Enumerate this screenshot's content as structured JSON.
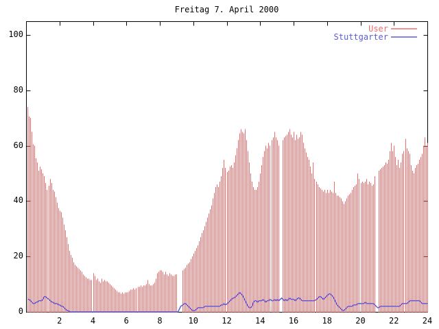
{
  "title": "Freitag 7. April 2000",
  "colors": {
    "background": "#ffffff",
    "axis": "#000000",
    "text": "#000000",
    "user_red": "#f26b6b",
    "stuttgarter_blue": "#5c5cd6"
  },
  "legend": {
    "position": "top-right",
    "entries": [
      {
        "label": "User",
        "color": "#f26b6b"
      },
      {
        "label": "Stuttgarter",
        "color": "#5c5cd6"
      }
    ]
  },
  "chart_data": {
    "type": "bar",
    "subtype": "impulses-plus-line",
    "title": "Freitag 7. April 2000",
    "xlabel": "",
    "ylabel": "",
    "xlim": [
      0,
      24
    ],
    "ylim": [
      0,
      105
    ],
    "grid": false,
    "legend_position": "top-right",
    "x_tick_labels": [
      "2",
      "4",
      "6",
      "8",
      "10",
      "12",
      "14",
      "16",
      "18",
      "20",
      "22",
      "24"
    ],
    "x_tick_hours": [
      2,
      4,
      6,
      8,
      10,
      12,
      14,
      16,
      18,
      20,
      22,
      24
    ],
    "y_tick_labels": [
      "0",
      "20",
      "40",
      "60",
      "80",
      "100"
    ],
    "y_tick_values": [
      0,
      20,
      40,
      60,
      80,
      100
    ],
    "sample_interval_minutes": 5,
    "first_sample_minute": 5,
    "series": [
      {
        "name": "User",
        "style": "impulses",
        "color": "#f26b6b",
        "values": [
          74,
          70.5,
          70,
          65,
          60.5,
          60,
          55.5,
          54,
          51,
          52.5,
          51.5,
          50,
          49,
          46.5,
          44,
          45.5,
          48,
          46.5,
          44,
          43.5,
          41.5,
          39.5,
          37.5,
          36.5,
          36,
          34,
          31.5,
          29.5,
          27,
          24.5,
          22,
          20.5,
          19.5,
          18,
          17,
          16.5,
          16,
          15.5,
          15,
          14.5,
          13.5,
          13,
          12.5,
          12,
          12,
          11.5,
          11.5,
          14,
          13,
          11.5,
          12,
          11,
          10.5,
          12,
          11,
          11.5,
          11,
          11,
          10.5,
          10,
          9.5,
          9,
          8.5,
          8,
          7.5,
          7,
          7,
          6.5,
          7,
          6.5,
          7,
          7,
          7,
          7.5,
          8,
          8,
          8.5,
          8,
          8.5,
          9,
          9,
          9.5,
          9,
          9.5,
          9.5,
          10,
          11.5,
          10,
          9.5,
          9.5,
          10,
          10.5,
          12,
          14,
          14.5,
          15,
          15,
          14.5,
          13.5,
          14.5,
          13.5,
          13,
          14,
          13.5,
          13,
          13,
          13.5,
          13.5,
          null,
          null,
          null,
          15,
          15.5,
          16,
          17,
          17.5,
          18,
          19,
          20,
          21,
          22,
          23,
          24,
          25.5,
          27,
          28.5,
          29.5,
          31,
          32.5,
          34,
          35.5,
          37,
          38.5,
          41,
          43,
          45,
          46,
          45,
          47,
          49,
          52,
          55,
          52,
          50.5,
          51,
          52.5,
          53,
          52,
          54,
          56.5,
          59,
          62,
          64.5,
          66,
          65,
          64.5,
          66,
          62,
          58,
          54,
          50,
          47,
          45,
          44,
          44,
          45,
          47,
          50,
          53,
          56,
          58,
          60,
          59,
          61,
          60,
          62,
          63,
          65,
          63,
          62,
          60,
          null,
          null,
          62,
          63,
          63.5,
          64,
          65,
          66,
          64,
          63,
          65,
          62,
          64,
          62.5,
          63,
          65,
          64,
          61,
          59,
          57.5,
          56,
          55,
          52.5,
          50,
          54,
          48,
          47,
          46,
          45,
          44.5,
          44,
          43.5,
          44,
          43,
          44,
          43,
          44,
          43.5,
          43,
          47,
          43,
          42,
          42,
          41.5,
          41,
          40,
          39,
          40,
          41,
          42,
          42.5,
          43,
          44,
          45,
          45.5,
          46,
          50,
          48,
          46.5,
          47,
          46.5,
          47,
          48,
          46,
          47,
          46.5,
          45.5,
          46,
          49,
          null,
          null,
          51,
          51.5,
          52,
          52.5,
          53,
          54,
          53.5,
          55,
          58,
          61,
          58,
          60,
          56,
          53,
          55,
          52,
          54,
          57,
          58,
          62.5,
          59,
          58,
          57,
          53,
          51,
          50,
          52,
          53,
          53.5,
          55,
          56,
          57,
          60,
          63,
          60,
          61
        ]
      },
      {
        "name": "Stuttgarter",
        "style": "line",
        "color": "#5c5cd6",
        "values": [
          4.5,
          4.5,
          4,
          3.5,
          3,
          3,
          3.5,
          3.5,
          4,
          4,
          4,
          4.5,
          5.5,
          5.5,
          5,
          4.5,
          4,
          3.5,
          3.5,
          3,
          3,
          3,
          2.5,
          2.5,
          2,
          2,
          1.5,
          1,
          0.5,
          0.5,
          0,
          0,
          0,
          0,
          0,
          0,
          0,
          0,
          0,
          0,
          0,
          0,
          0,
          0,
          0,
          0,
          0,
          0,
          0,
          0,
          0,
          0,
          0,
          0,
          0,
          0,
          0,
          0,
          0,
          0,
          0,
          0,
          0,
          0,
          0,
          0,
          0,
          0,
          0,
          0,
          0,
          0,
          0,
          0,
          0,
          0,
          0,
          0,
          0,
          0,
          0,
          0,
          0,
          0,
          0,
          0,
          0,
          0,
          0,
          0,
          0,
          0,
          0,
          0,
          0,
          0,
          0,
          0,
          0,
          0,
          0,
          0,
          0,
          0,
          0,
          0,
          0,
          0,
          0,
          1,
          2,
          2.5,
          3,
          3,
          2.5,
          2,
          1.5,
          1,
          0.5,
          0.5,
          0.5,
          1,
          1.5,
          1.5,
          1.5,
          1.5,
          1.5,
          2,
          2,
          2,
          2,
          2,
          2,
          2,
          2,
          2,
          2,
          2,
          2,
          2.5,
          2.5,
          3,
          2.5,
          3,
          3.5,
          4,
          4.5,
          5,
          5,
          5.5,
          6,
          6.5,
          7,
          6.5,
          6,
          5,
          4,
          3,
          2,
          1.5,
          1.5,
          2,
          3.5,
          4,
          4,
          3.5,
          4,
          4,
          4,
          4.5,
          4,
          3.5,
          4,
          4,
          4.5,
          4,
          4,
          4.5,
          4,
          4.5,
          4,
          4.5,
          5,
          4.5,
          4,
          4.5,
          4,
          4.5,
          5,
          4.5,
          4.5,
          4.5,
          4,
          4.5,
          5,
          5,
          4.5,
          4,
          4,
          4,
          4,
          4,
          4,
          4,
          4,
          4,
          4,
          4.5,
          5,
          5.5,
          5.5,
          5,
          4.5,
          5,
          5.5,
          6,
          6.5,
          6.5,
          6,
          5.5,
          4.5,
          3.5,
          2.5,
          2,
          1.5,
          1,
          0.5,
          0.5,
          1,
          1.5,
          2,
          2,
          2,
          2,
          2.5,
          2.5,
          2.5,
          3,
          3,
          3,
          3,
          3,
          3.5,
          3,
          3,
          3,
          3,
          3,
          3,
          2.5,
          2,
          1.5,
          1.5,
          2,
          2,
          2,
          2,
          2,
          2,
          2,
          2,
          2,
          2,
          2,
          2,
          2,
          2,
          2,
          2.5,
          3,
          3,
          3,
          3,
          3.5,
          4,
          4,
          4,
          4,
          4,
          4,
          4,
          4,
          3.5,
          3,
          3,
          3,
          3,
          3
        ]
      }
    ]
  }
}
